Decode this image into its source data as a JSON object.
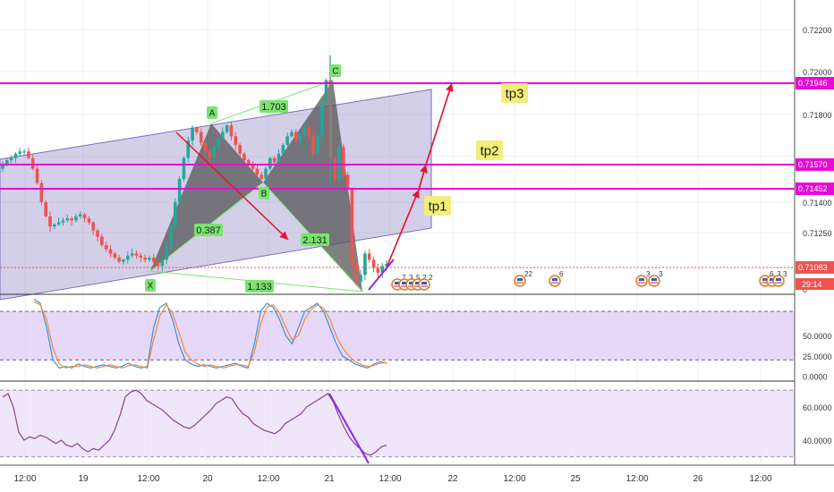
{
  "chart_data": [
    {
      "type": "candlestick",
      "title": "",
      "x_tick_labels": [
        "12:00",
        "19",
        "12:00",
        "20",
        "12:00",
        "21",
        "12:00",
        "22",
        "12:00",
        "25",
        "12:00",
        "26",
        "12:00"
      ],
      "y_tick_labels": [
        "0.72200",
        "0.72000",
        "0.71800",
        "0.71400",
        "0.71250"
      ],
      "ylim": [
        0.71,
        0.723
      ],
      "price_scale_values": [
        "0.71946",
        "0.71570",
        "0.71452",
        "0.71083"
      ],
      "countdown_label": "29:14",
      "zero_tick": "0",
      "levels": [
        {
          "name": "tp3",
          "price": 0.71946
        },
        {
          "name": "tp2",
          "price": 0.7157
        },
        {
          "name": "tp1",
          "price": 0.71452
        }
      ],
      "current_price": 0.71083,
      "target_labels": [
        "tp3",
        "tp2",
        "tp1"
      ],
      "pattern_points": [
        "X",
        "A",
        "B",
        "C"
      ],
      "ratio_labels": [
        "1.703",
        "0.387",
        "2.131",
        "1.133"
      ],
      "event_labels": [
        "7",
        "3",
        "5",
        "2",
        "2",
        "22",
        "6",
        "3",
        "3",
        "6",
        "3",
        "3"
      ],
      "close_series": [
        0.7157,
        0.7159,
        0.716,
        0.7162,
        0.7163,
        0.7163,
        0.716,
        0.7155,
        0.7148,
        0.714,
        0.7133,
        0.7128,
        0.7129,
        0.713,
        0.7131,
        0.7132,
        0.7131,
        0.7133,
        0.7134,
        0.7132,
        0.713,
        0.7126,
        0.7123,
        0.7119,
        0.7117,
        0.7115,
        0.7113,
        0.7111,
        0.7112,
        0.7114,
        0.7115,
        0.7114,
        0.7113,
        0.7112,
        0.7113,
        0.7111,
        0.7109,
        0.7112,
        0.7118,
        0.7128,
        0.714,
        0.715,
        0.716,
        0.7168,
        0.7174,
        0.7172,
        0.7167,
        0.7163,
        0.716,
        0.7165,
        0.7169,
        0.7172,
        0.7175,
        0.717,
        0.7166,
        0.7162,
        0.7159,
        0.7157,
        0.7155,
        0.7152,
        0.715,
        0.7155,
        0.716,
        0.7158,
        0.7162,
        0.7166,
        0.717,
        0.7172,
        0.7168,
        0.7171,
        0.7174,
        0.717,
        0.7162,
        0.717,
        0.7185,
        0.7196,
        0.716,
        0.715,
        0.7165,
        0.7152,
        0.7145,
        0.711,
        0.7102,
        0.7105,
        0.7115,
        0.7112,
        0.7108,
        0.7106,
        0.7109,
        0.711
      ]
    },
    {
      "type": "line",
      "title": "",
      "ylim": [
        -5,
        100
      ],
      "y_tick_labels": [
        "50.0000",
        "25.0000",
        "0.0000"
      ],
      "reference_levels": [
        20,
        80
      ],
      "series": [
        {
          "values": [
            95,
            90,
            60,
            20,
            10,
            12,
            10,
            15,
            12,
            10,
            12,
            14,
            12,
            10,
            12,
            16,
            12,
            10,
            12,
            60,
            85,
            90,
            70,
            40,
            20,
            15,
            12,
            14,
            12,
            10,
            12,
            14,
            16,
            12,
            10,
            40,
            80,
            90,
            85,
            70,
            50,
            40,
            60,
            80,
            85,
            90,
            80,
            60,
            40,
            25,
            20,
            15,
            12,
            10,
            15,
            18,
            16
          ]
        },
        {
          "values": [
            92,
            88,
            70,
            35,
            15,
            10,
            12,
            12,
            14,
            12,
            10,
            12,
            14,
            12,
            10,
            13,
            14,
            12,
            10,
            45,
            75,
            88,
            78,
            55,
            30,
            20,
            15,
            12,
            14,
            12,
            10,
            12,
            14,
            14,
            12,
            30,
            65,
            85,
            88,
            78,
            60,
            45,
            50,
            70,
            82,
            88,
            84,
            70,
            50,
            35,
            25,
            18,
            14,
            12,
            13,
            16,
            17
          ]
        }
      ]
    },
    {
      "type": "line",
      "title": "",
      "ylim": [
        25,
        75
      ],
      "y_tick_labels": [
        "60.0000",
        "40.0000"
      ],
      "reference_levels": [
        30,
        70
      ],
      "series": [
        {
          "values": [
            66,
            68,
            60,
            45,
            40,
            42,
            41,
            43,
            42,
            40,
            38,
            40,
            37,
            36,
            38,
            35,
            33,
            35,
            34,
            37,
            40,
            46,
            55,
            66,
            69,
            70,
            68,
            64,
            62,
            60,
            58,
            55,
            52,
            50,
            48,
            47,
            49,
            52,
            55,
            58,
            62,
            64,
            66,
            65,
            60,
            56,
            54,
            50,
            48,
            46,
            45,
            44,
            46,
            50,
            52,
            54,
            56,
            60,
            62,
            64,
            66,
            68,
            63,
            55,
            48,
            42,
            38,
            35,
            32,
            31,
            33,
            36,
            37
          ]
        }
      ]
    }
  ],
  "colors": {
    "bull": "#26a69a",
    "bear": "#ef5350",
    "magenta": "#e60bd6",
    "channel": "#7b6fb8",
    "pattern_fill": "#555555",
    "label_green": "#7be36e",
    "label_yellow": "#f2ee7a",
    "arrow_red": "#e3162b",
    "stoch_blue": "#3f8fd8",
    "stoch_orange": "#f28b34",
    "rsi_purple": "#8a3f9e",
    "trend_purple": "#8a2be2"
  }
}
